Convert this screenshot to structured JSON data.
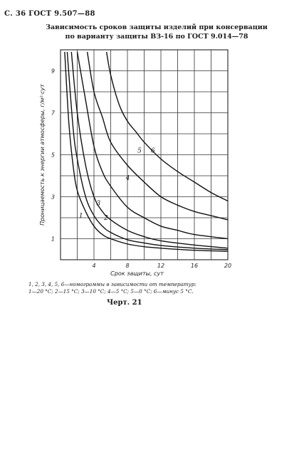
{
  "page_header": "С. 36 ГОСТ 9.507—88",
  "title_line1": "Зависимость сроков защиты изделий при консервации",
  "title_line2": "по варианту защиты ВЗ-16 по ГОСТ 9.014—78",
  "caption_line1": "1, 2, 3, 4, 5, 6—номограммы в зависимости от температур:",
  "caption_line2": "1—20 °С; 2—15 °С; 3—10 °С; 4—5 °С; 5—0 °С; 6—минус 5 °С.",
  "figure_label": "Черт. 21",
  "chart_data": {
    "type": "line",
    "title": "",
    "xlabel": "Срок защиты, сут",
    "ylabel": "Проницаемость к энергии атмосферы, г/м²·сут",
    "xlim": [
      0,
      20
    ],
    "ylim": [
      0,
      10
    ],
    "x_ticks": [
      4,
      8,
      12,
      16,
      20
    ],
    "y_ticks": [
      1,
      3,
      5,
      7,
      9
    ],
    "grid": true,
    "series": [
      {
        "name": "1",
        "points": [
          [
            0.5,
            9.9
          ],
          [
            1.0,
            6.5
          ],
          [
            1.5,
            4.5
          ],
          [
            2.0,
            3.3
          ],
          [
            3.0,
            2.3
          ],
          [
            4.0,
            1.6
          ],
          [
            5.0,
            1.2
          ],
          [
            6.0,
            1.0
          ],
          [
            8.0,
            0.75
          ],
          [
            10.0,
            0.62
          ],
          [
            12.0,
            0.55
          ],
          [
            16.0,
            0.45
          ],
          [
            20.0,
            0.4
          ]
        ]
      },
      {
        "name": "2",
        "points": [
          [
            0.8,
            9.9
          ],
          [
            1.5,
            6.3
          ],
          [
            2.0,
            4.8
          ],
          [
            3.0,
            3.0
          ],
          [
            4.0,
            2.1
          ],
          [
            5.0,
            1.6
          ],
          [
            6.0,
            1.3
          ],
          [
            8.0,
            0.95
          ],
          [
            10.0,
            0.8
          ],
          [
            12.0,
            0.68
          ],
          [
            16.0,
            0.55
          ],
          [
            20.0,
            0.48
          ]
        ]
      },
      {
        "name": "3",
        "points": [
          [
            1.3,
            9.9
          ],
          [
            2.0,
            7.0
          ],
          [
            3.0,
            4.5
          ],
          [
            4.0,
            3.0
          ],
          [
            5.0,
            2.3
          ],
          [
            6.0,
            1.9
          ],
          [
            8.0,
            1.4
          ],
          [
            10.0,
            1.1
          ],
          [
            12.0,
            0.9
          ],
          [
            16.0,
            0.7
          ],
          [
            20.0,
            0.55
          ]
        ]
      },
      {
        "name": "4",
        "points": [
          [
            2.0,
            9.9
          ],
          [
            3.0,
            7.6
          ],
          [
            4.0,
            5.4
          ],
          [
            5.0,
            4.2
          ],
          [
            6.0,
            3.5
          ],
          [
            8.0,
            2.5
          ],
          [
            10.0,
            2.0
          ],
          [
            12.0,
            1.6
          ],
          [
            14.0,
            1.4
          ],
          [
            16.0,
            1.2
          ],
          [
            20.0,
            1.0
          ]
        ]
      },
      {
        "name": "5",
        "points": [
          [
            3.2,
            9.9
          ],
          [
            4.0,
            8.0
          ],
          [
            5.0,
            6.8
          ],
          [
            6.0,
            5.6
          ],
          [
            8.0,
            4.5
          ],
          [
            10.0,
            3.7
          ],
          [
            12.0,
            3.0
          ],
          [
            14.0,
            2.6
          ],
          [
            16.0,
            2.3
          ],
          [
            18.0,
            2.1
          ],
          [
            20.0,
            1.9
          ]
        ]
      },
      {
        "name": "6",
        "points": [
          [
            5.5,
            9.9
          ],
          [
            6.0,
            8.8
          ],
          [
            7.0,
            7.4
          ],
          [
            8.0,
            6.6
          ],
          [
            9.0,
            6.1
          ],
          [
            10.0,
            5.6
          ],
          [
            12.0,
            4.8
          ],
          [
            14.0,
            4.2
          ],
          [
            16.0,
            3.7
          ],
          [
            18.0,
            3.2
          ],
          [
            20.0,
            2.8
          ]
        ]
      }
    ]
  }
}
